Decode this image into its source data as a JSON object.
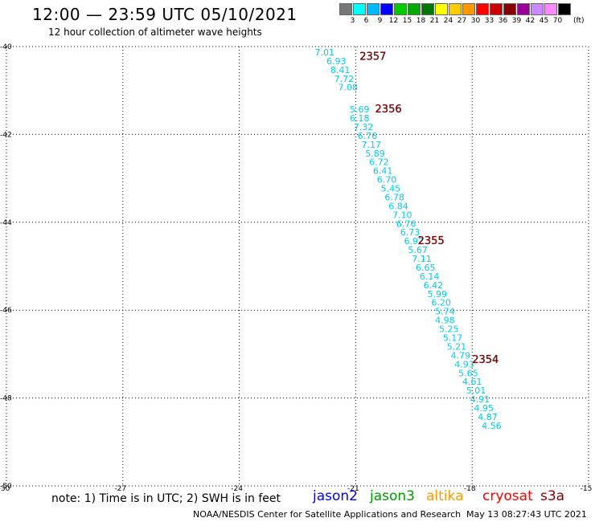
{
  "title": "12:00 — 23:59 UTC 05/10/2021",
  "subtitle": "12 hour collection of altimeter wave heights",
  "color_scale": {
    "colors": [
      "#777777",
      "#00ffff",
      "#00b8ff",
      "#0000ff",
      "#00cc00",
      "#00aa00",
      "#007700",
      "#ffff00",
      "#ffcc00",
      "#ff9900",
      "#ff0000",
      "#cc0000",
      "#880000",
      "#990099",
      "#cc88ff",
      "#ff88ff",
      "#000000"
    ],
    "labels": [
      "3",
      "6",
      "9",
      "12",
      "15",
      "18",
      "21",
      "24",
      "27",
      "30",
      "33",
      "36",
      "39",
      "42",
      "45",
      "70"
    ],
    "unit": "(ft)"
  },
  "chart_data": {
    "type": "scatter",
    "title": "12:00 — 23:59 UTC 05/10/2021",
    "xlabel": "",
    "ylabel": "",
    "xlim": [
      -30,
      -15
    ],
    "ylim": [
      -50,
      -40
    ],
    "x_ticks": [
      -30,
      -27,
      -24,
      -21,
      -18,
      -15
    ],
    "y_ticks": [
      -40,
      -42,
      -44,
      -46,
      -48,
      -50
    ],
    "grid": true,
    "series": [
      {
        "name": "jason2",
        "color": "#0000ff",
        "points": []
      },
      {
        "name": "jason3",
        "color": "#009900",
        "points": []
      },
      {
        "name": "altika",
        "color": "#ff9900",
        "points": []
      },
      {
        "name": "cryosat",
        "color": "#ff0000",
        "points": []
      },
      {
        "name": "s3a",
        "color": "#880000",
        "points": [
          {
            "x": -21.8,
            "y": -40.2,
            "v": "7.01"
          },
          {
            "x": -21.5,
            "y": -40.4,
            "v": "6.93"
          },
          {
            "x": -21.4,
            "y": -40.6,
            "v": "8.41"
          },
          {
            "x": -21.3,
            "y": -40.8,
            "v": "7.72"
          },
          {
            "x": -21.2,
            "y": -41.0,
            "v": "7.08"
          },
          {
            "x": -20.9,
            "y": -41.5,
            "v": "5.69"
          },
          {
            "x": -20.9,
            "y": -41.7,
            "v": "6.18"
          },
          {
            "x": -20.8,
            "y": -41.9,
            "v": "7.32"
          },
          {
            "x": -20.7,
            "y": -42.1,
            "v": "6.76"
          },
          {
            "x": -20.6,
            "y": -42.3,
            "v": "7.17"
          },
          {
            "x": -20.5,
            "y": -42.5,
            "v": "5.89"
          },
          {
            "x": -20.4,
            "y": -42.7,
            "v": "6.72"
          },
          {
            "x": -20.3,
            "y": -42.9,
            "v": "6.41"
          },
          {
            "x": -20.2,
            "y": -43.1,
            "v": "6.70"
          },
          {
            "x": -20.1,
            "y": -43.3,
            "v": "5.45"
          },
          {
            "x": -20.0,
            "y": -43.5,
            "v": "6.78"
          },
          {
            "x": -19.9,
            "y": -43.7,
            "v": "6.84"
          },
          {
            "x": -19.8,
            "y": -43.9,
            "v": "7.10"
          },
          {
            "x": -19.7,
            "y": -44.1,
            "v": "6.76"
          },
          {
            "x": -19.6,
            "y": -44.3,
            "v": "6.73"
          },
          {
            "x": -19.5,
            "y": -44.5,
            "v": "6.92"
          },
          {
            "x": -19.4,
            "y": -44.7,
            "v": "5.67"
          },
          {
            "x": -19.3,
            "y": -44.9,
            "v": "7.11"
          },
          {
            "x": -19.2,
            "y": -45.1,
            "v": "6.65"
          },
          {
            "x": -19.1,
            "y": -45.3,
            "v": "6.14"
          },
          {
            "x": -19.0,
            "y": -45.5,
            "v": "6.42"
          },
          {
            "x": -18.9,
            "y": -45.7,
            "v": "5.99"
          },
          {
            "x": -18.8,
            "y": -45.9,
            "v": "6.20"
          },
          {
            "x": -18.7,
            "y": -46.1,
            "v": "5.74"
          },
          {
            "x": -18.7,
            "y": -46.3,
            "v": "4.98"
          },
          {
            "x": -18.6,
            "y": -46.5,
            "v": "5.25"
          },
          {
            "x": -18.5,
            "y": -46.7,
            "v": "5.17"
          },
          {
            "x": -18.4,
            "y": -46.9,
            "v": "5.21"
          },
          {
            "x": -18.3,
            "y": -47.1,
            "v": "4.79"
          },
          {
            "x": -18.2,
            "y": -47.3,
            "v": "4.93"
          },
          {
            "x": -18.1,
            "y": -47.5,
            "v": "5.65"
          },
          {
            "x": -18.0,
            "y": -47.7,
            "v": "4.61"
          },
          {
            "x": -17.9,
            "y": -47.9,
            "v": "5.01"
          },
          {
            "x": -17.8,
            "y": -48.1,
            "v": "4.91"
          },
          {
            "x": -17.7,
            "y": -48.3,
            "v": "4.95"
          },
          {
            "x": -17.6,
            "y": -48.5,
            "v": "4.87"
          },
          {
            "x": -17.5,
            "y": -48.7,
            "v": "4.56"
          }
        ]
      }
    ],
    "time_labels": [
      {
        "x": -20.9,
        "y": -40.3,
        "text": "2357"
      },
      {
        "x": -20.5,
        "y": -41.5,
        "text": "2356"
      },
      {
        "x": -19.4,
        "y": -44.5,
        "text": "2355"
      },
      {
        "x": -18.0,
        "y": -47.2,
        "text": "2354"
      }
    ]
  },
  "note": "note: 1) Time is in UTC; 2) SWH is in feet",
  "satellites": [
    {
      "name": "jason2",
      "color": "#0000ff"
    },
    {
      "name": "jason3",
      "color": "#009900"
    },
    {
      "name": "altika",
      "color": "#ff9900"
    },
    {
      "name": "cryosat",
      "color": "#ff0000"
    },
    {
      "name": "s3a",
      "color": "#880000"
    }
  ],
  "footer_left": "NOAA/NESDIS Center for Satellite Applications and Research",
  "footer_right": "May 13 08:27:43 UTC 2021"
}
